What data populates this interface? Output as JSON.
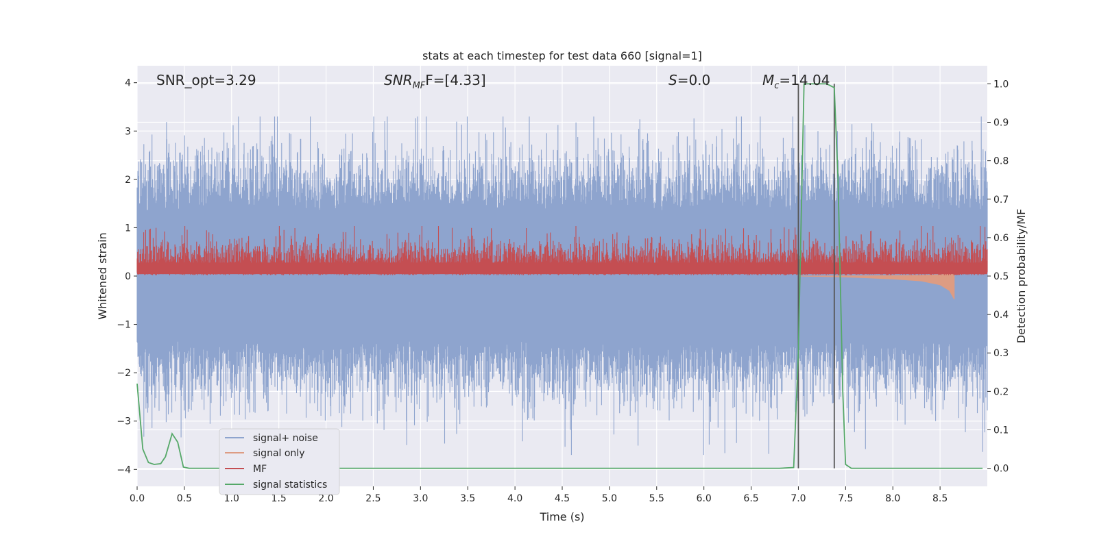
{
  "chart_data": {
    "type": "line",
    "title": "stats at each timestep for test data 660 [signal=1]",
    "xlabel": "Time (s)",
    "ylabel_left": "Whitened strain",
    "ylabel_right": "Detection probability/MF",
    "xlim": [
      0,
      9
    ],
    "ylim_left": [
      -4.35,
      4.35
    ],
    "ylim_right": [
      -0.047,
      1.047
    ],
    "grid": true,
    "xticks": [
      "0.0",
      "0.5",
      "1.0",
      "1.5",
      "2.0",
      "2.5",
      "3.0",
      "3.5",
      "4.0",
      "4.5",
      "5.0",
      "5.5",
      "6.0",
      "6.5",
      "7.0",
      "7.5",
      "8.0",
      "8.5"
    ],
    "xtick_values": [
      0,
      0.5,
      1.0,
      1.5,
      2.0,
      2.5,
      3.0,
      3.5,
      4.0,
      4.5,
      5.0,
      5.5,
      6.0,
      6.5,
      7.0,
      7.5,
      8.0,
      8.5
    ],
    "yticks_left": [
      "−4",
      "−3",
      "−2",
      "−1",
      "0",
      "1",
      "2",
      "3",
      "4"
    ],
    "ytick_values_left": [
      -4,
      -3,
      -2,
      -1,
      0,
      1,
      2,
      3,
      4
    ],
    "yticks_right": [
      "0.0",
      "0.1",
      "0.2",
      "0.3",
      "0.4",
      "0.5",
      "0.6",
      "0.7",
      "0.8",
      "0.9",
      "1.0"
    ],
    "ytick_values_right": [
      0,
      0.1,
      0.2,
      0.3,
      0.4,
      0.5,
      0.6,
      0.7,
      0.8,
      0.9,
      1.0
    ],
    "annotations": {
      "snr_opt": "SNR_opt=3.29",
      "snr_mf_main": "SNR",
      "snr_mf_sub": "MF",
      "snr_mf_rest": "F=[4.33]",
      "s_main": "S",
      "s_rest": "=0.0",
      "mc_main": "M",
      "mc_sub": "c",
      "mc_rest": "=14.04"
    },
    "vlines": [
      7.0,
      7.38
    ],
    "legend": [
      "signal+ noise",
      "signal only",
      "MF",
      "signal statistics"
    ],
    "legend_position": "lower-left",
    "colors": {
      "signal_noise": "#8ea4ce",
      "signal_only": "#dd9c83",
      "mf": "#c44e52",
      "signal_stats": "#55a868",
      "vline": "#555555",
      "background": "#eaeaf2",
      "grid": "#ffffff"
    },
    "series": [
      {
        "name": "signal+ noise",
        "axis": "left",
        "description_values": "whitened strain noise, approx. range [-3.7, 3.3]",
        "amplitude_range": [
          -3.7,
          3.3
        ]
      },
      {
        "name": "signal only",
        "axis": "left",
        "x": [
          7.0,
          7.5,
          8.0,
          8.3,
          8.5,
          8.6,
          8.65
        ],
        "y": [
          0,
          -0.02,
          -0.06,
          -0.1,
          -0.18,
          -0.3,
          -0.48
        ]
      },
      {
        "name": "MF",
        "axis": "right",
        "amplitude_range": [
          0.5,
          0.63
        ]
      },
      {
        "name": "signal statistics",
        "axis": "right",
        "x": [
          0.0,
          0.06,
          0.12,
          0.18,
          0.25,
          0.3,
          0.37,
          0.43,
          0.49,
          0.55,
          1.0,
          2.0,
          3.0,
          4.0,
          5.0,
          6.0,
          6.8,
          6.95,
          7.0,
          7.06,
          7.12,
          7.2,
          7.3,
          7.38,
          7.42,
          7.47,
          7.5,
          7.56,
          7.7,
          8.0,
          8.5,
          8.95
        ],
        "y": [
          0.22,
          0.05,
          0.015,
          0.01,
          0.012,
          0.03,
          0.09,
          0.068,
          0.003,
          0.0,
          0.0,
          0.0,
          0.0,
          0.0,
          0.0,
          0.0,
          0.0,
          0.002,
          0.3,
          1.0,
          1.0,
          1.0,
          1.0,
          0.99,
          0.75,
          0.2,
          0.01,
          0.0,
          0.0,
          0.0,
          0.0,
          0.0
        ]
      }
    ]
  }
}
